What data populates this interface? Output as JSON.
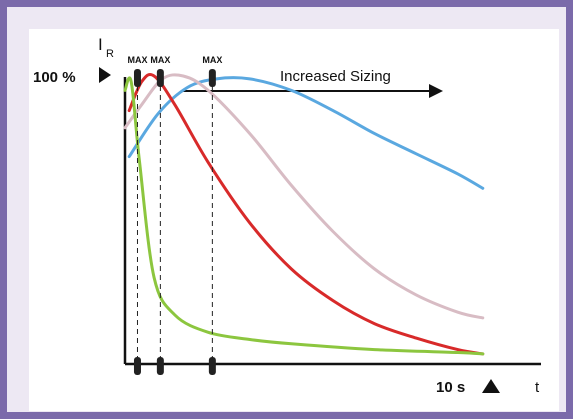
{
  "chart_data": {
    "type": "line",
    "y_axis_label": "I",
    "y_axis_label_subscript": "R",
    "y_marker_label": "100 %",
    "x_axis_label": "t",
    "x_marker_label": "10 s",
    "annotation": "Increased Sizing",
    "max_labels": [
      "MAX",
      "MAX",
      "MAX"
    ],
    "xlim": [
      0,
      10
    ],
    "ylim": [
      0,
      100
    ],
    "max_positions_x": [
      0.3,
      0.85,
      2.1
    ],
    "series": [
      {
        "color": "#8cc63f",
        "points": [
          [
            0,
            95
          ],
          [
            0.15,
            98
          ],
          [
            0.35,
            70
          ],
          [
            0.7,
            30
          ],
          [
            1.2,
            17
          ],
          [
            2,
            11
          ],
          [
            3,
            8.5
          ],
          [
            4,
            7
          ],
          [
            6,
            5
          ],
          [
            8,
            4
          ],
          [
            8.6,
            3.5
          ]
        ]
      },
      {
        "color": "#d82a2a",
        "points": [
          [
            0.1,
            88
          ],
          [
            0.4,
            98
          ],
          [
            0.7,
            100
          ],
          [
            1.2,
            90
          ],
          [
            2,
            70
          ],
          [
            3,
            49
          ],
          [
            4,
            33
          ],
          [
            5,
            22
          ],
          [
            6,
            14
          ],
          [
            7,
            9
          ],
          [
            8,
            5
          ],
          [
            8.6,
            3.5
          ]
        ]
      },
      {
        "color": "#d8bcc4",
        "points": [
          [
            0,
            82
          ],
          [
            0.4,
            90
          ],
          [
            0.9,
            99
          ],
          [
            1.4,
            100
          ],
          [
            2,
            95
          ],
          [
            3,
            80
          ],
          [
            4,
            62
          ],
          [
            5,
            46
          ],
          [
            6,
            33
          ],
          [
            7,
            24
          ],
          [
            8,
            18
          ],
          [
            8.6,
            16
          ]
        ]
      },
      {
        "color": "#5aa8e0",
        "points": [
          [
            0.1,
            72
          ],
          [
            0.8,
            87
          ],
          [
            1.5,
            96
          ],
          [
            2.2,
            99
          ],
          [
            3,
            99
          ],
          [
            4,
            95
          ],
          [
            5,
            88
          ],
          [
            6,
            80
          ],
          [
            7,
            73
          ],
          [
            8,
            66
          ],
          [
            8.6,
            61
          ]
        ]
      }
    ]
  }
}
